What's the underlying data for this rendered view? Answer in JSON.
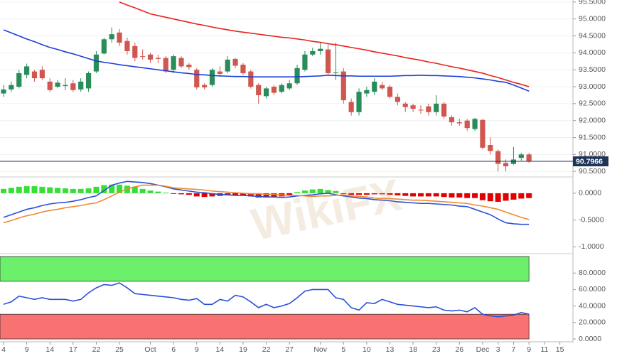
{
  "watermark": "WikiFX",
  "chart_data": [
    {
      "type": "candlestick",
      "categories": [
        "4",
        null,
        null,
        "9",
        null,
        null,
        "14",
        null,
        null,
        "17",
        null,
        null,
        "22",
        null,
        null,
        "25",
        null,
        null,
        null,
        "Oct",
        null,
        null,
        "6",
        null,
        null,
        "9",
        null,
        null,
        "14",
        null,
        null,
        "19",
        null,
        null,
        "22",
        null,
        null,
        "27",
        null,
        null,
        null,
        "Nov",
        null,
        null,
        "5",
        null,
        null,
        "10",
        null,
        null,
        "13",
        null,
        null,
        "18",
        null,
        null,
        "23",
        null,
        null,
        "26",
        null,
        null,
        "Dec",
        null,
        "3",
        null,
        "7",
        null,
        "9",
        null,
        "11",
        null,
        "15"
      ],
      "open": [
        92.8,
        92.92,
        93.0,
        93.35,
        93.45,
        93.5,
        93.15,
        93.0,
        93.02,
        93.1,
        92.92,
        92.95,
        93.45,
        93.98,
        94.4,
        94.6,
        94.35,
        94.2,
        93.9,
        93.95,
        93.85,
        93.85,
        93.5,
        93.85,
        93.65,
        93.5,
        93.05,
        93.05,
        93.45,
        93.45,
        93.82,
        93.65,
        93.45,
        93.05,
        92.72,
        93.0,
        92.85,
        92.95,
        93.1,
        93.5,
        93.95,
        94.05,
        94.1,
        93.4,
        93.45,
        92.55,
        92.25,
        92.8,
        92.85,
        93.05,
        93.0,
        92.7,
        92.5,
        92.45,
        92.32,
        92.42,
        92.25,
        92.5,
        92.1,
        91.95,
        92.0,
        91.75,
        92.02,
        91.28,
        91.1,
        90.75,
        90.72,
        90.9,
        91.0,
        null,
        null,
        null,
        null
      ],
      "high": [
        93.05,
        93.15,
        93.5,
        93.68,
        93.5,
        93.6,
        93.25,
        93.2,
        93.25,
        93.2,
        93.25,
        93.45,
        94.05,
        94.45,
        94.75,
        94.7,
        94.45,
        94.3,
        94.1,
        94.0,
        93.95,
        93.9,
        93.95,
        93.9,
        93.7,
        93.55,
        93.1,
        93.55,
        93.6,
        93.9,
        93.85,
        93.7,
        93.5,
        93.1,
        93.0,
        93.05,
        93.1,
        93.2,
        93.65,
        94.05,
        94.15,
        94.3,
        94.25,
        94.3,
        93.55,
        92.65,
        92.95,
        93.0,
        93.25,
        93.15,
        93.05,
        92.8,
        92.55,
        92.5,
        92.45,
        92.5,
        92.75,
        92.55,
        92.15,
        92.05,
        92.05,
        92.08,
        92.05,
        91.5,
        91.15,
        90.85,
        91.22,
        91.05,
        91.05,
        null,
        null,
        null,
        null
      ],
      "low": [
        92.7,
        92.85,
        92.95,
        93.25,
        93.15,
        93.2,
        92.85,
        92.95,
        92.9,
        92.85,
        92.85,
        92.85,
        93.4,
        93.95,
        94.3,
        94.2,
        93.95,
        93.75,
        93.8,
        93.7,
        93.7,
        93.4,
        93.4,
        93.55,
        93.5,
        92.92,
        92.92,
        93.0,
        93.3,
        93.4,
        93.55,
        93.35,
        92.95,
        92.5,
        92.65,
        92.75,
        92.8,
        92.9,
        93.05,
        93.45,
        93.9,
        93.95,
        93.35,
        93.2,
        92.5,
        92.15,
        92.15,
        92.7,
        92.75,
        92.9,
        92.65,
        92.45,
        92.25,
        92.25,
        92.2,
        92.15,
        92.15,
        92.05,
        91.85,
        91.85,
        91.7,
        91.7,
        91.15,
        91.0,
        90.5,
        90.5,
        90.7,
        90.82,
        90.75,
        null,
        null,
        null,
        null
      ],
      "close": [
        92.92,
        93.05,
        93.4,
        93.6,
        93.25,
        93.25,
        92.9,
        93.12,
        93.05,
        92.9,
        93.15,
        93.4,
        93.95,
        94.4,
        94.55,
        94.3,
        94.05,
        93.85,
        93.88,
        93.8,
        93.82,
        93.45,
        93.9,
        93.6,
        93.58,
        92.98,
        92.98,
        93.5,
        93.38,
        93.8,
        93.62,
        93.4,
        93.0,
        92.75,
        92.95,
        92.82,
        93.05,
        93.1,
        93.55,
        93.95,
        94.05,
        94.12,
        93.4,
        93.42,
        92.6,
        92.25,
        92.85,
        92.9,
        93.15,
        92.95,
        92.7,
        92.55,
        92.4,
        92.35,
        92.3,
        92.25,
        92.5,
        92.12,
        91.95,
        91.92,
        91.78,
        92.05,
        91.2,
        91.1,
        90.72,
        90.65,
        90.85,
        91.0,
        90.7966,
        null,
        null,
        null,
        null
      ],
      "up_color": "#2a8c5a",
      "down_color": "#d0574f",
      "series": [
        {
          "color": "#e8231c",
          "values": [
            null,
            null,
            null,
            null,
            null,
            null,
            null,
            null,
            null,
            null,
            null,
            null,
            null,
            null,
            null,
            95.5,
            95.41,
            95.33,
            95.24,
            95.15,
            95.1,
            95.05,
            95.0,
            94.95,
            94.9,
            94.85,
            94.81,
            94.76,
            94.72,
            94.68,
            94.64,
            94.61,
            94.58,
            94.55,
            94.52,
            94.49,
            94.46,
            94.44,
            94.41,
            94.38,
            94.34,
            94.31,
            94.27,
            94.24,
            94.2,
            94.16,
            94.12,
            94.08,
            94.03,
            93.99,
            93.95,
            93.91,
            93.86,
            93.82,
            93.78,
            93.73,
            93.69,
            93.64,
            93.59,
            93.55,
            93.5,
            93.45,
            93.4,
            93.33,
            93.27,
            93.2,
            93.13,
            93.07,
            93.0,
            null,
            null,
            null,
            null
          ]
        },
        {
          "color": "#1d3fd6",
          "values": [
            94.68,
            94.59,
            94.5,
            94.41,
            94.33,
            94.24,
            94.16,
            94.1,
            94.03,
            93.97,
            93.9,
            93.83,
            93.76,
            93.72,
            93.69,
            93.65,
            93.62,
            93.59,
            93.56,
            93.53,
            93.5,
            93.47,
            93.44,
            93.41,
            93.39,
            93.36,
            93.35,
            93.33,
            93.32,
            93.31,
            93.3,
            93.3,
            93.29,
            93.29,
            93.29,
            93.29,
            93.29,
            93.29,
            93.29,
            93.3,
            93.31,
            93.32,
            93.34,
            93.33,
            93.32,
            93.32,
            93.31,
            93.31,
            93.31,
            93.31,
            93.31,
            93.32,
            93.33,
            93.33,
            93.34,
            93.33,
            93.33,
            93.32,
            93.31,
            93.3,
            93.28,
            93.26,
            93.23,
            93.2,
            93.16,
            93.13,
            93.05,
            92.96,
            92.87,
            null,
            null,
            null,
            null
          ]
        }
      ],
      "last_price": 90.7966,
      "last_price_color": "#1f3557",
      "ylim": [
        90.42,
        95.56
      ],
      "yticks": [
        {
          "value": 90.5,
          "label": "90.5000"
        },
        {
          "value": 91.0,
          "label": "91.0000"
        },
        {
          "value": 91.5,
          "label": "91.5000"
        },
        {
          "value": 92.0,
          "label": "92.0000"
        },
        {
          "value": 92.5,
          "label": "92.5000"
        },
        {
          "value": 93.0,
          "label": "93.0000"
        },
        {
          "value": 93.5,
          "label": "93.5000"
        },
        {
          "value": 94.0,
          "label": "94.0000"
        },
        {
          "value": 94.5,
          "label": "94.5000"
        },
        {
          "value": 95.0,
          "label": "95.0000"
        },
        {
          "value": 95.5,
          "label": "95.5000"
        }
      ],
      "grid": true
    },
    {
      "type": "macd",
      "values": [
        0.08,
        0.1,
        0.12,
        0.13,
        0.13,
        0.12,
        0.11,
        0.1,
        0.09,
        0.08,
        0.08,
        0.09,
        0.12,
        0.15,
        0.16,
        0.16,
        0.14,
        0.12,
        0.08,
        0.05,
        0.03,
        0.01,
        -0.005,
        -0.02,
        -0.03,
        -0.06,
        -0.07,
        -0.06,
        -0.05,
        -0.04,
        -0.03,
        -0.04,
        -0.06,
        -0.08,
        -0.08,
        -0.07,
        -0.06,
        -0.04,
        0.02,
        0.05,
        0.07,
        0.08,
        0.06,
        0.04,
        -0.01,
        -0.03,
        -0.03,
        -0.03,
        -0.02,
        -0.02,
        -0.03,
        -0.04,
        -0.05,
        -0.06,
        -0.06,
        -0.06,
        -0.06,
        -0.07,
        -0.08,
        -0.08,
        -0.09,
        -0.09,
        -0.13,
        -0.15,
        -0.16,
        -0.14,
        -0.12,
        -0.1,
        -0.09,
        null,
        null,
        null,
        null
      ],
      "positive_color": "#33e033",
      "negative_color": "#e00000",
      "series": [
        {
          "color": "#2a4fd8",
          "values": [
            -0.45,
            -0.4,
            -0.35,
            -0.3,
            -0.27,
            -0.23,
            -0.2,
            -0.18,
            -0.17,
            -0.15,
            -0.12,
            -0.08,
            -0.05,
            0.05,
            0.15,
            0.19,
            0.22,
            0.21,
            0.2,
            0.18,
            0.15,
            0.12,
            0.08,
            0.06,
            0.04,
            0.02,
            0.01,
            -0.01,
            -0.02,
            -0.03,
            -0.04,
            -0.04,
            -0.05,
            -0.06,
            -0.07,
            -0.07,
            -0.08,
            -0.07,
            -0.05,
            -0.04,
            -0.03,
            -0.01,
            0.0,
            -0.03,
            -0.05,
            -0.07,
            -0.09,
            -0.1,
            -0.12,
            -0.13,
            -0.14,
            -0.16,
            -0.17,
            -0.18,
            -0.19,
            -0.19,
            -0.2,
            -0.21,
            -0.22,
            -0.24,
            -0.25,
            -0.3,
            -0.35,
            -0.4,
            -0.48,
            -0.55,
            -0.57,
            -0.58,
            -0.58,
            null,
            null,
            null,
            null
          ]
        },
        {
          "color": "#f08a30",
          "values": [
            -0.55,
            -0.51,
            -0.46,
            -0.42,
            -0.39,
            -0.35,
            -0.32,
            -0.3,
            -0.27,
            -0.25,
            -0.23,
            -0.2,
            -0.18,
            -0.12,
            -0.05,
            0.02,
            0.08,
            0.12,
            0.15,
            0.15,
            0.15,
            0.13,
            0.1,
            0.09,
            0.08,
            0.07,
            0.06,
            0.04,
            0.03,
            0.02,
            0.01,
            0.0,
            -0.01,
            -0.01,
            -0.02,
            -0.02,
            -0.03,
            -0.04,
            -0.04,
            -0.05,
            -0.06,
            -0.05,
            -0.05,
            -0.04,
            -0.03,
            -0.05,
            -0.06,
            -0.07,
            -0.09,
            -0.1,
            -0.1,
            -0.11,
            -0.12,
            -0.13,
            -0.13,
            -0.14,
            -0.15,
            -0.16,
            -0.17,
            -0.18,
            -0.19,
            -0.22,
            -0.24,
            -0.27,
            -0.3,
            -0.35,
            -0.4,
            -0.45,
            -0.49,
            null,
            null,
            null,
            null
          ]
        }
      ],
      "ylim": [
        -1.1,
        0.25
      ],
      "yticks": [
        {
          "value": -1.0,
          "label": "-1.0000"
        },
        {
          "value": -0.5,
          "label": "-0.5000"
        },
        {
          "value": 0,
          "label": "0.0000"
        }
      ]
    },
    {
      "type": "line",
      "zones": [
        {
          "from": 70,
          "to": 100,
          "color": "#6cf06c"
        },
        {
          "from": 0,
          "to": 30,
          "color": "#f87272"
        }
      ],
      "series": [
        {
          "color": "#2a4fd8",
          "values": [
            42,
            45,
            52,
            50,
            48,
            50,
            48,
            48,
            48,
            46,
            48,
            56,
            62,
            66,
            65,
            68,
            62,
            55,
            54,
            53,
            52,
            51,
            50,
            48,
            47,
            49,
            42,
            42,
            48,
            46,
            53,
            51,
            45,
            38,
            42,
            38,
            40,
            43,
            50,
            58,
            60,
            60,
            60,
            50,
            48,
            38,
            35,
            44,
            43,
            48,
            45,
            42,
            41,
            40,
            39,
            38,
            39,
            35,
            34,
            35,
            33,
            38,
            30,
            28,
            27,
            28,
            29,
            32,
            30,
            null,
            null,
            null,
            null
          ]
        }
      ],
      "ylim": [
        0,
        100
      ],
      "yticks": [
        {
          "value": 0,
          "label": "0.0000"
        },
        {
          "value": 20,
          "label": "20.0000"
        },
        {
          "value": 40,
          "label": "40.0000"
        },
        {
          "value": 60,
          "label": "60.0000"
        },
        {
          "value": 80,
          "label": "80.0000"
        }
      ]
    }
  ]
}
